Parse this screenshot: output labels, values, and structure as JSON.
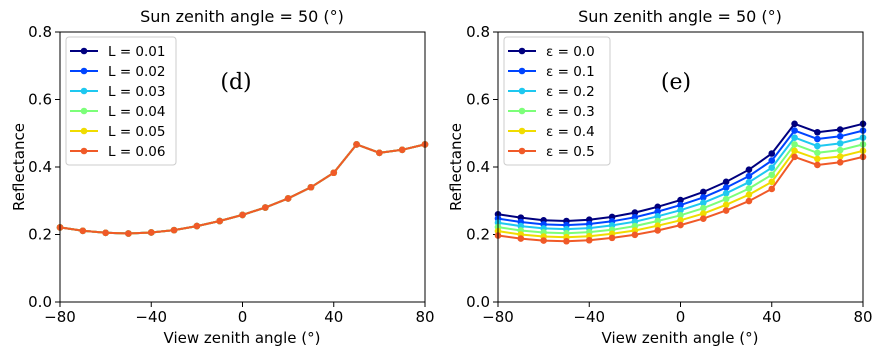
{
  "chart_data": [
    {
      "type": "line",
      "panel_label": "(d)",
      "title": "Sun zenith angle = 50 (°)",
      "xlabel": "View zenith angle (°)",
      "ylabel": "Reflectance",
      "xlim": [
        -80,
        80
      ],
      "ylim": [
        0.0,
        0.8
      ],
      "xticks": [
        -80,
        -40,
        0,
        40,
        80
      ],
      "xtick_labels": [
        "−80",
        "−40",
        "0",
        "40",
        "80"
      ],
      "yticks": [
        0.0,
        0.2,
        0.4,
        0.6,
        0.8
      ],
      "ytick_labels": [
        "0.0",
        "0.2",
        "0.4",
        "0.6",
        "0.8"
      ],
      "grid": false,
      "legend_position": "top-left",
      "x": [
        -80,
        -70,
        -60,
        -50,
        -40,
        -30,
        -20,
        -10,
        0,
        10,
        20,
        30,
        40,
        50,
        60,
        70,
        80
      ],
      "series": [
        {
          "name": "L = 0.01",
          "color": "#00007f",
          "values": [
            0.221,
            0.211,
            0.205,
            0.203,
            0.206,
            0.213,
            0.225,
            0.24,
            0.258,
            0.28,
            0.307,
            0.34,
            0.383,
            0.467,
            0.442,
            0.451,
            0.467
          ]
        },
        {
          "name": "L = 0.02",
          "color": "#0044ff",
          "values": [
            0.221,
            0.211,
            0.205,
            0.203,
            0.206,
            0.213,
            0.225,
            0.24,
            0.258,
            0.28,
            0.307,
            0.34,
            0.383,
            0.467,
            0.442,
            0.451,
            0.467
          ]
        },
        {
          "name": "L = 0.03",
          "color": "#1ec8f0",
          "values": [
            0.221,
            0.211,
            0.205,
            0.203,
            0.206,
            0.213,
            0.225,
            0.24,
            0.258,
            0.28,
            0.307,
            0.34,
            0.383,
            0.467,
            0.442,
            0.451,
            0.467
          ]
        },
        {
          "name": "L = 0.04",
          "color": "#7cff79",
          "values": [
            0.221,
            0.211,
            0.205,
            0.203,
            0.206,
            0.213,
            0.225,
            0.24,
            0.258,
            0.28,
            0.307,
            0.34,
            0.383,
            0.467,
            0.442,
            0.451,
            0.467
          ]
        },
        {
          "name": "L = 0.05",
          "color": "#f0dc00",
          "values": [
            0.221,
            0.211,
            0.205,
            0.203,
            0.206,
            0.213,
            0.225,
            0.24,
            0.258,
            0.28,
            0.307,
            0.34,
            0.383,
            0.467,
            0.442,
            0.451,
            0.467
          ]
        },
        {
          "name": "L = 0.06",
          "color": "#f05a28",
          "values": [
            0.221,
            0.211,
            0.205,
            0.203,
            0.206,
            0.213,
            0.225,
            0.24,
            0.258,
            0.28,
            0.307,
            0.34,
            0.383,
            0.467,
            0.442,
            0.451,
            0.467
          ]
        }
      ]
    },
    {
      "type": "line",
      "panel_label": "(e)",
      "title": "Sun zenith angle = 50 (°)",
      "xlabel": "View zenith angle (°)",
      "ylabel": "Reflectance",
      "xlim": [
        -80,
        80
      ],
      "ylim": [
        0.0,
        0.8
      ],
      "xticks": [
        -80,
        -40,
        0,
        40,
        80
      ],
      "xtick_labels": [
        "−80",
        "−40",
        "0",
        "40",
        "80"
      ],
      "yticks": [
        0.0,
        0.2,
        0.4,
        0.6,
        0.8
      ],
      "ytick_labels": [
        "0.0",
        "0.2",
        "0.4",
        "0.6",
        "0.8"
      ],
      "grid": false,
      "legend_position": "top-left",
      "x": [
        -80,
        -70,
        -60,
        -50,
        -40,
        -30,
        -20,
        -10,
        0,
        10,
        20,
        30,
        40,
        50,
        60,
        70,
        80
      ],
      "series": [
        {
          "name": "ε = 0.0",
          "color": "#00007f",
          "values": [
            0.26,
            0.25,
            0.242,
            0.24,
            0.244,
            0.252,
            0.265,
            0.282,
            0.302,
            0.326,
            0.356,
            0.392,
            0.44,
            0.528,
            0.503,
            0.511,
            0.528
          ]
        },
        {
          "name": "ε = 0.1",
          "color": "#0044ff",
          "values": [
            0.247,
            0.237,
            0.23,
            0.228,
            0.231,
            0.239,
            0.251,
            0.268,
            0.287,
            0.31,
            0.339,
            0.373,
            0.419,
            0.508,
            0.483,
            0.491,
            0.508
          ]
        },
        {
          "name": "ε = 0.2",
          "color": "#1ec8f0",
          "values": [
            0.235,
            0.225,
            0.218,
            0.216,
            0.219,
            0.227,
            0.238,
            0.254,
            0.272,
            0.294,
            0.322,
            0.355,
            0.398,
            0.487,
            0.462,
            0.47,
            0.487
          ]
        },
        {
          "name": "ε = 0.3",
          "color": "#7cff79",
          "values": [
            0.222,
            0.212,
            0.206,
            0.204,
            0.207,
            0.214,
            0.225,
            0.24,
            0.257,
            0.278,
            0.305,
            0.336,
            0.377,
            0.467,
            0.442,
            0.45,
            0.467
          ]
        },
        {
          "name": "ε = 0.4",
          "color": "#f0dc00",
          "values": [
            0.21,
            0.2,
            0.194,
            0.192,
            0.195,
            0.202,
            0.212,
            0.226,
            0.242,
            0.262,
            0.288,
            0.318,
            0.356,
            0.448,
            0.424,
            0.431,
            0.448
          ]
        },
        {
          "name": "ε = 0.5",
          "color": "#f05a28",
          "values": [
            0.197,
            0.188,
            0.182,
            0.18,
            0.183,
            0.19,
            0.199,
            0.212,
            0.228,
            0.247,
            0.271,
            0.299,
            0.335,
            0.43,
            0.406,
            0.414,
            0.43
          ]
        }
      ]
    }
  ]
}
